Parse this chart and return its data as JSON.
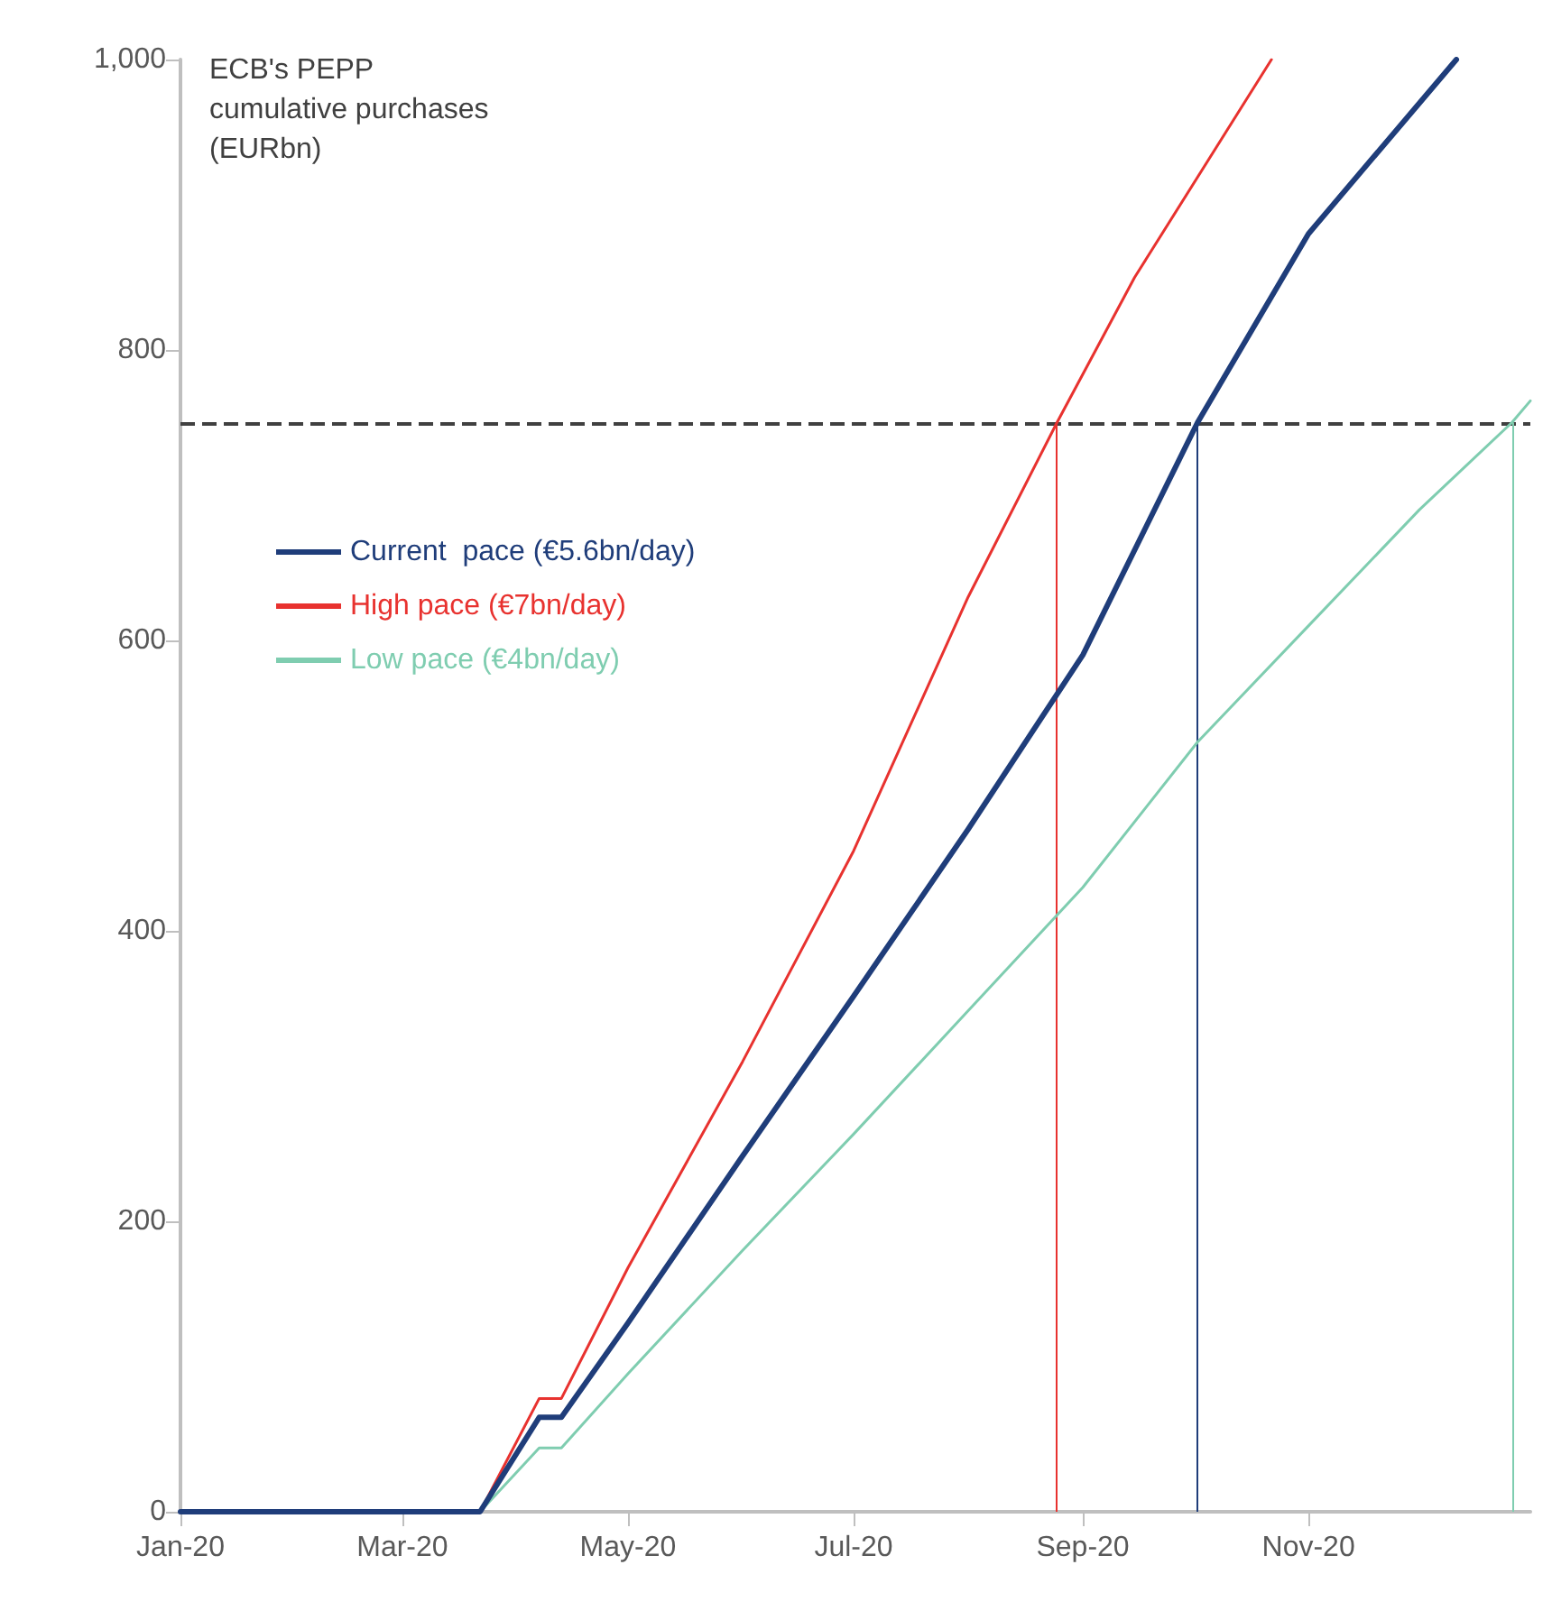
{
  "chart_data": {
    "type": "line",
    "ylabel": "ECB's PEPP\ncumulative purchases\n(EURbn)",
    "xlim": [
      "2020-01-01",
      "2020-12-31"
    ],
    "xticks": [
      {
        "value": "2020-01-01",
        "label": "Jan-20"
      },
      {
        "value": "2020-03-01",
        "label": "Mar-20"
      },
      {
        "value": "2020-05-01",
        "label": "May-20"
      },
      {
        "value": "2020-07-01",
        "label": "Jul-20"
      },
      {
        "value": "2020-09-01",
        "label": "Sep-20"
      },
      {
        "value": "2020-11-01",
        "label": "Nov-20"
      }
    ],
    "ylim": [
      0,
      1000
    ],
    "yticks": [
      0,
      200,
      400,
      600,
      800,
      {
        "value": 1000,
        "label": "1,000"
      }
    ],
    "grid": false,
    "legend": "left",
    "marker": "none",
    "line_style": "solid",
    "series": [
      {
        "name": "Current  pace (€5.6bn/day)",
        "color": "#1f3d7a",
        "x": [
          "2020-01-01",
          "2020-03-22",
          "2020-04-07",
          "2020-04-13",
          "2020-05-01",
          "2020-06-01",
          "2020-07-01",
          "2020-08-01",
          "2020-09-01",
          "2020-10-02",
          "2020-11-01",
          "2020-12-11"
        ],
        "values": [
          0,
          0,
          65,
          65,
          130,
          245,
          355,
          470,
          590,
          750,
          880,
          1000
        ]
      },
      {
        "name": "High pace (€7bn/day)",
        "color": "#e8322f",
        "x": [
          "2020-01-01",
          "2020-03-22",
          "2020-04-07",
          "2020-04-13",
          "2020-05-01",
          "2020-06-01",
          "2020-07-01",
          "2020-08-01",
          "2020-08-25",
          "2020-09-15",
          "2020-10-22"
        ],
        "values": [
          0,
          0,
          78,
          78,
          168,
          310,
          455,
          630,
          750,
          850,
          1000
        ]
      },
      {
        "name": "Low pace (€4bn/day)",
        "color": "#7fcdb0",
        "x": [
          "2020-01-01",
          "2020-03-22",
          "2020-04-07",
          "2020-04-13",
          "2020-05-01",
          "2020-06-01",
          "2020-07-01",
          "2020-08-01",
          "2020-09-01",
          "2020-10-02",
          "2020-11-01",
          "2020-12-01",
          "2020-12-26",
          "2020-12-31"
        ],
        "values": [
          0,
          0,
          44,
          44,
          95,
          180,
          260,
          345,
          430,
          530,
          610,
          690,
          750,
          765
        ]
      }
    ],
    "ref_lines": [
      {
        "axis": "y",
        "value": 750,
        "color": "#404040",
        "line_style": "dashed"
      },
      {
        "axis": "x",
        "value": "2020-08-25",
        "color": "#e8322f",
        "line_style": "solid"
      },
      {
        "axis": "x",
        "value": "2020-10-02",
        "color": "#1f3d7a",
        "line_style": "solid"
      },
      {
        "axis": "x",
        "value": "2020-12-26",
        "color": "#7fcdb0",
        "line_style": "solid"
      }
    ]
  }
}
